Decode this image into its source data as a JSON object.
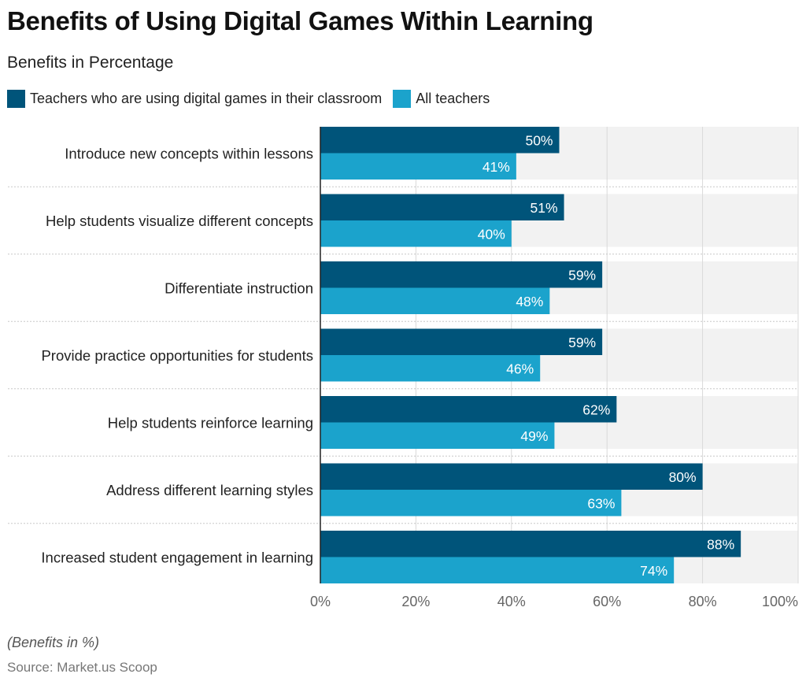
{
  "title": "Benefits of Using Digital Games Within Learning",
  "subtitle": "Benefits in Percentage",
  "note": "(Benefits in %)",
  "source": "Source: Market.us Scoop",
  "colors": {
    "series1": "#00547a",
    "series2": "#1ba3cc",
    "band": "#f2f2f2"
  },
  "chart_data": {
    "type": "bar",
    "orientation": "horizontal",
    "title": "Benefits of Using Digital Games Within Learning",
    "subtitle": "Benefits in Percentage",
    "xlabel": "",
    "ylabel": "",
    "xlim": [
      0,
      100
    ],
    "grid": true,
    "legend_position": "top-left",
    "x_ticks": [
      "0%",
      "20%",
      "40%",
      "60%",
      "80%",
      "100%"
    ],
    "x_tick_values": [
      0,
      20,
      40,
      60,
      80,
      100
    ],
    "categories": [
      "Introduce new concepts within lessons",
      "Help students visualize different concepts",
      "Differentiate instruction",
      "Provide practice opportunities for students",
      "Help students reinforce learning",
      "Address different learning styles",
      "Increased student engagement in learning"
    ],
    "series": [
      {
        "name": "Teachers who are using digital games in their classroom",
        "values": [
          50,
          51,
          59,
          59,
          62,
          80,
          88
        ],
        "labels": [
          "50%",
          "51%",
          "59%",
          "59%",
          "62%",
          "80%",
          "88%"
        ]
      },
      {
        "name": "All teachers",
        "values": [
          41,
          40,
          48,
          46,
          49,
          63,
          74
        ],
        "labels": [
          "41%",
          "40%",
          "48%",
          "46%",
          "49%",
          "63%",
          "74%"
        ]
      }
    ]
  }
}
